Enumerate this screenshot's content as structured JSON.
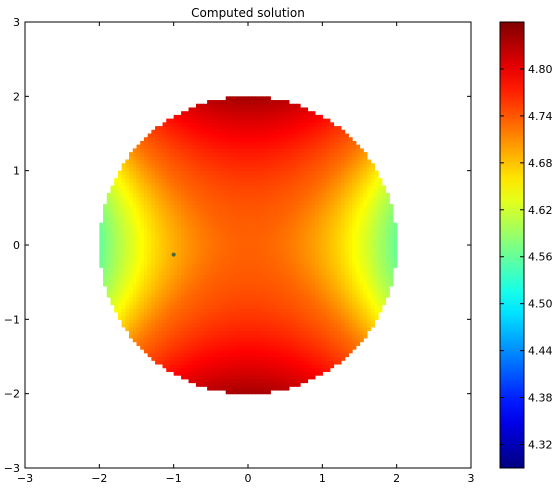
{
  "chart_data": {
    "type": "heatmap",
    "title": "Computed solution",
    "xlabel": "",
    "ylabel": "",
    "xlim": [
      -3,
      3
    ],
    "ylim": [
      -3,
      3
    ],
    "xticks": [
      -3,
      -2,
      -1,
      0,
      1,
      2,
      3
    ],
    "yticks": [
      -3,
      -2,
      -1,
      0,
      1,
      2,
      3
    ],
    "xtick_labels": [
      "−3",
      "−2",
      "−1",
      "0",
      "1",
      "2",
      "3"
    ],
    "ytick_labels": [
      "−3",
      "−2",
      "−1",
      "0",
      "1",
      "2",
      "3"
    ],
    "domain": {
      "shape": "disk",
      "center": [
        0,
        0
      ],
      "radius": 2
    },
    "field": {
      "description_of_values": "solution values over the disk",
      "min_value": 4.54,
      "max_value": 4.85,
      "center_value": 4.735,
      "top_bottom_edge_value": 4.84,
      "left_right_edge_value": 4.56
    },
    "marker": {
      "x": -1,
      "y": -0.13
    },
    "colorbar": {
      "colormap": "jet",
      "vmin": 4.29,
      "vmax": 4.86,
      "ticks": [
        4.32,
        4.38,
        4.44,
        4.5,
        4.56,
        4.62,
        4.68,
        4.74,
        4.8
      ],
      "tick_labels": [
        "4.32",
        "4.38",
        "4.44",
        "4.50",
        "4.56",
        "4.62",
        "4.68",
        "4.74",
        "4.80"
      ]
    },
    "grid": false
  }
}
